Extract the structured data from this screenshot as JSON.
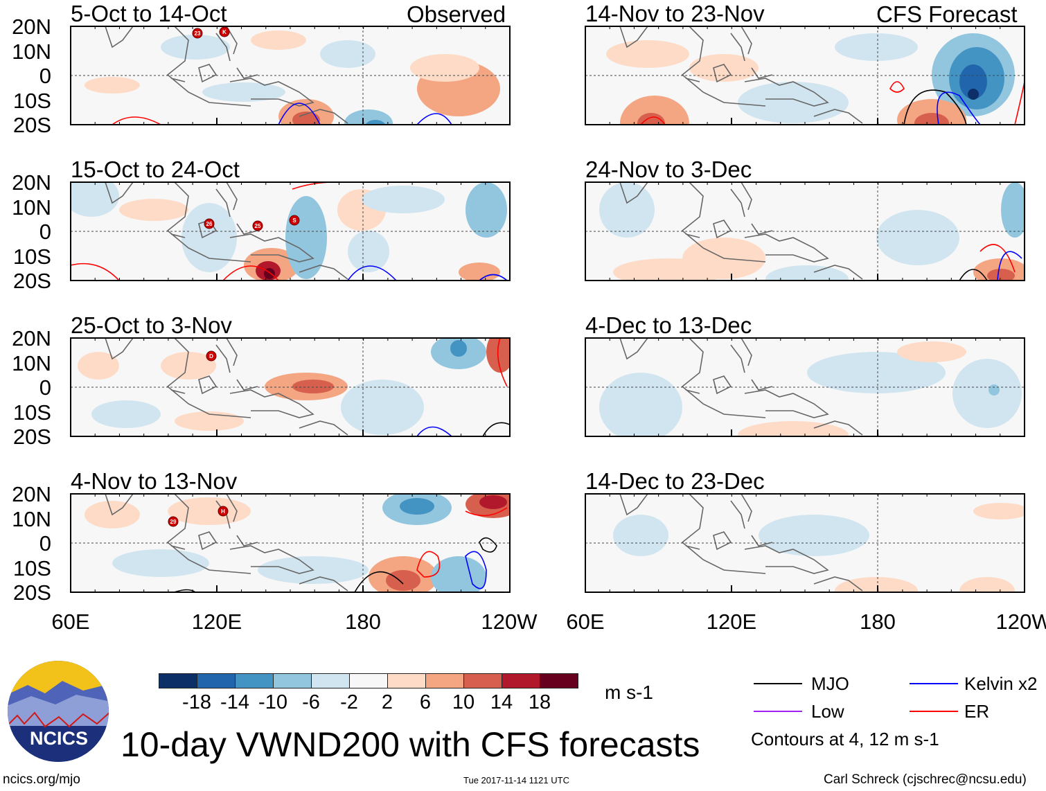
{
  "figure_title": "10-day VWND200 with CFS forecasts",
  "units": "m s-1",
  "headers": {
    "observed": "Observed",
    "forecast": "CFS Forecast"
  },
  "lat_labels": [
    "20N",
    "10N",
    "0",
    "10S",
    "20S"
  ],
  "lon_labels": [
    "60E",
    "120E",
    "180",
    "120W"
  ],
  "colors": [
    "#0b2f66",
    "#2166ac",
    "#4393c3",
    "#92c5de",
    "#d1e5f0",
    "#f7f7f7",
    "#fddbc7",
    "#f4a582",
    "#d6604d",
    "#b2182b",
    "#67001f"
  ],
  "chart_data": {
    "type": "heatmap",
    "variable": "200 hPa meridional wind anomaly (VWND200)",
    "colorbar_ticks": [
      "-18",
      "-14",
      "-10",
      "-6",
      "-2",
      "2",
      "6",
      "10",
      "14",
      "18"
    ],
    "xrange": [
      "60E",
      "120W"
    ],
    "yrange": [
      "20S",
      "20N"
    ],
    "observed_panels": [
      {
        "title": "5-Oct to 14-Oct",
        "storms": [
          "23",
          "K"
        ]
      },
      {
        "title": "15-Oct to 24-Oct",
        "storms": [
          "26",
          "25",
          "S"
        ]
      },
      {
        "title": "25-Oct to 3-Nov",
        "storms": [
          "D"
        ]
      },
      {
        "title": "4-Nov to 13-Nov",
        "storms": [
          "29",
          "H"
        ]
      }
    ],
    "forecast_panels": [
      {
        "title": "14-Nov to 23-Nov"
      },
      {
        "title": "24-Nov to 3-Dec"
      },
      {
        "title": "4-Dec to 13-Dec"
      },
      {
        "title": "14-Dec to 23-Dec"
      }
    ]
  },
  "legend": {
    "items": [
      {
        "label": "MJO",
        "color": "#000000"
      },
      {
        "label": "Low",
        "color": "#a020f0"
      },
      {
        "label": "Kelvin x2",
        "color": "#0000ff"
      },
      {
        "label": "ER",
        "color": "#ff0000"
      }
    ],
    "note": "Contours at 4, 12 m s-1"
  },
  "logo": {
    "text": "NCICS"
  },
  "footer": {
    "url": "ncics.org/mjo",
    "timestamp": "Tue 2017-11-14 1121 UTC",
    "author": "Carl Schreck (cjschrec@ncsu.edu)"
  }
}
